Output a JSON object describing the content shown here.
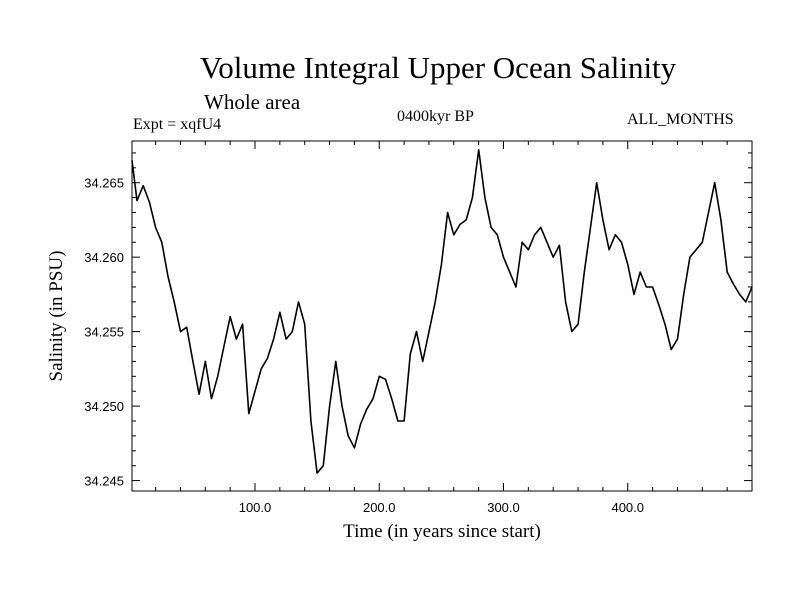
{
  "header": {
    "title": "Volume Integral Upper Ocean Salinity",
    "subtitle": "Whole area",
    "experiment": "Expt = xqfU4",
    "period": "0400kyr BP",
    "months": "ALL_MONTHS"
  },
  "chart_data": {
    "type": "line",
    "title": "Volume Integral Upper Ocean Salinity",
    "xlabel": "Time (in years since start)",
    "ylabel": "Salinity (in PSU)",
    "xlim": [
      1,
      500
    ],
    "ylim": [
      34.2443,
      34.2678
    ],
    "x_ticks": [
      100,
      200,
      300,
      400
    ],
    "x_tick_labels": [
      "100.0",
      "200.0",
      "300.0",
      "400.0"
    ],
    "y_ticks": [
      34.245,
      34.25,
      34.255,
      34.26,
      34.265
    ],
    "y_tick_labels": [
      "34.245",
      "34.250",
      "34.255",
      "34.260",
      "34.265"
    ],
    "grid": false,
    "series": [
      {
        "name": "Salinity",
        "color": "#000000",
        "x": [
          1,
          5,
          10,
          15,
          20,
          25,
          30,
          35,
          40,
          45,
          50,
          55,
          60,
          65,
          70,
          75,
          80,
          85,
          90,
          95,
          100,
          105,
          110,
          115,
          120,
          125,
          130,
          135,
          140,
          145,
          150,
          155,
          160,
          165,
          170,
          175,
          180,
          185,
          190,
          195,
          200,
          205,
          210,
          215,
          220,
          225,
          230,
          235,
          240,
          245,
          250,
          255,
          260,
          265,
          270,
          275,
          280,
          285,
          290,
          295,
          300,
          305,
          310,
          315,
          320,
          325,
          330,
          335,
          340,
          345,
          350,
          355,
          360,
          365,
          370,
          375,
          380,
          385,
          390,
          395,
          400,
          405,
          410,
          415,
          420,
          425,
          430,
          435,
          440,
          445,
          450,
          455,
          460,
          465,
          470,
          475,
          480,
          485,
          490,
          495,
          500
        ],
        "values": [
          34.2665,
          34.2638,
          34.2648,
          34.2637,
          34.262,
          34.261,
          34.2587,
          34.257,
          34.255,
          34.2553,
          34.253,
          34.2508,
          34.253,
          34.2505,
          34.252,
          34.254,
          34.256,
          34.2545,
          34.2555,
          34.2495,
          34.251,
          34.2525,
          34.2532,
          34.2545,
          34.2563,
          34.2545,
          34.255,
          34.257,
          34.2555,
          34.249,
          34.2455,
          34.246,
          34.25,
          34.253,
          34.25,
          34.248,
          34.2472,
          34.2488,
          34.2498,
          34.2505,
          34.252,
          34.2518,
          34.2505,
          34.249,
          34.249,
          34.2535,
          34.255,
          34.253,
          34.255,
          34.257,
          34.2595,
          34.263,
          34.2615,
          34.2622,
          34.2625,
          34.264,
          34.2672,
          34.264,
          34.262,
          34.2615,
          34.26,
          34.259,
          34.258,
          34.261,
          34.2605,
          34.2615,
          34.262,
          34.261,
          34.26,
          34.2608,
          34.257,
          34.255,
          34.2555,
          34.259,
          34.262,
          34.265,
          34.2625,
          34.2605,
          34.2615,
          34.261,
          34.2595,
          34.2575,
          34.259,
          34.258,
          34.258,
          34.2568,
          34.2555,
          34.2538,
          34.2545,
          34.2575,
          34.26,
          34.2605,
          34.261,
          34.263,
          34.265,
          34.2625,
          34.259,
          34.2582,
          34.2575,
          34.257,
          34.258
        ]
      }
    ]
  }
}
